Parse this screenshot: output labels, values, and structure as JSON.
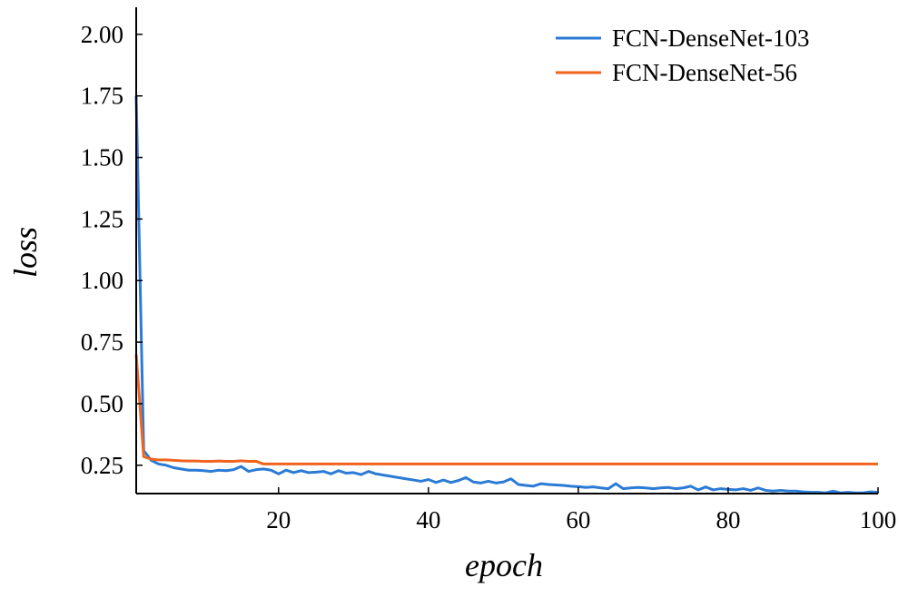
{
  "chart_data": {
    "type": "line",
    "xlabel": "epoch",
    "ylabel": "loss",
    "xlim": [
      1,
      100
    ],
    "ylim": [
      0.135,
      2.11
    ],
    "x_ticks": [
      20,
      40,
      60,
      80,
      100
    ],
    "x_tick_labels": [
      "20",
      "40",
      "60",
      "80",
      "100"
    ],
    "y_ticks": [
      0.25,
      0.5,
      0.75,
      1.0,
      1.25,
      1.5,
      1.75,
      2.0
    ],
    "y_tick_labels": [
      "0.25",
      "0.50",
      "0.75",
      "1.00",
      "1.25",
      "1.50",
      "1.75",
      "2.00"
    ],
    "grid": false,
    "legend_position": "top-right",
    "series": [
      {
        "name": "FCN-DenseNet-103",
        "color": "#2b7bd6",
        "x": [
          1,
          2,
          3,
          4,
          5,
          6,
          7,
          8,
          9,
          10,
          11,
          12,
          13,
          14,
          15,
          16,
          17,
          18,
          19,
          20,
          21,
          22,
          23,
          24,
          25,
          26,
          27,
          28,
          29,
          30,
          31,
          32,
          33,
          34,
          35,
          36,
          37,
          38,
          39,
          40,
          41,
          42,
          43,
          44,
          45,
          46,
          47,
          48,
          49,
          50,
          51,
          52,
          53,
          54,
          55,
          56,
          57,
          58,
          59,
          60,
          61,
          62,
          63,
          64,
          65,
          66,
          67,
          68,
          69,
          70,
          71,
          72,
          73,
          74,
          75,
          76,
          77,
          78,
          79,
          80,
          81,
          82,
          83,
          84,
          85,
          86,
          87,
          88,
          89,
          90,
          91,
          92,
          93,
          94,
          95,
          96,
          97,
          98,
          99,
          100
        ],
        "y": [
          1.75,
          0.31,
          0.27,
          0.255,
          0.25,
          0.24,
          0.235,
          0.23,
          0.23,
          0.228,
          0.225,
          0.23,
          0.228,
          0.232,
          0.245,
          0.225,
          0.232,
          0.235,
          0.23,
          0.215,
          0.23,
          0.22,
          0.228,
          0.22,
          0.222,
          0.225,
          0.215,
          0.228,
          0.218,
          0.22,
          0.212,
          0.225,
          0.215,
          0.21,
          0.205,
          0.2,
          0.195,
          0.19,
          0.185,
          0.192,
          0.18,
          0.19,
          0.18,
          0.188,
          0.2,
          0.182,
          0.178,
          0.185,
          0.178,
          0.182,
          0.195,
          0.172,
          0.168,
          0.165,
          0.175,
          0.172,
          0.17,
          0.168,
          0.165,
          0.163,
          0.16,
          0.162,
          0.158,
          0.155,
          0.175,
          0.155,
          0.158,
          0.16,
          0.158,
          0.155,
          0.158,
          0.16,
          0.155,
          0.158,
          0.165,
          0.15,
          0.162,
          0.15,
          0.155,
          0.152,
          0.15,
          0.155,
          0.148,
          0.158,
          0.148,
          0.145,
          0.148,
          0.145,
          0.145,
          0.142,
          0.14,
          0.14,
          0.138,
          0.145,
          0.138,
          0.14,
          0.138,
          0.138,
          0.142,
          0.14
        ]
      },
      {
        "name": "FCN-DenseNet-56",
        "color": "#f0641e",
        "x": [
          1,
          2,
          3,
          4,
          5,
          6,
          7,
          8,
          9,
          10,
          11,
          12,
          13,
          14,
          15,
          16,
          17,
          18,
          19,
          20,
          22,
          25,
          30,
          40,
          50,
          60,
          70,
          80,
          90,
          100
        ],
        "y": [
          0.7,
          0.285,
          0.275,
          0.272,
          0.272,
          0.27,
          0.268,
          0.267,
          0.267,
          0.266,
          0.266,
          0.267,
          0.266,
          0.266,
          0.268,
          0.266,
          0.266,
          0.255,
          0.255,
          0.255,
          0.255,
          0.255,
          0.255,
          0.255,
          0.255,
          0.255,
          0.255,
          0.255,
          0.255,
          0.255
        ]
      }
    ]
  }
}
